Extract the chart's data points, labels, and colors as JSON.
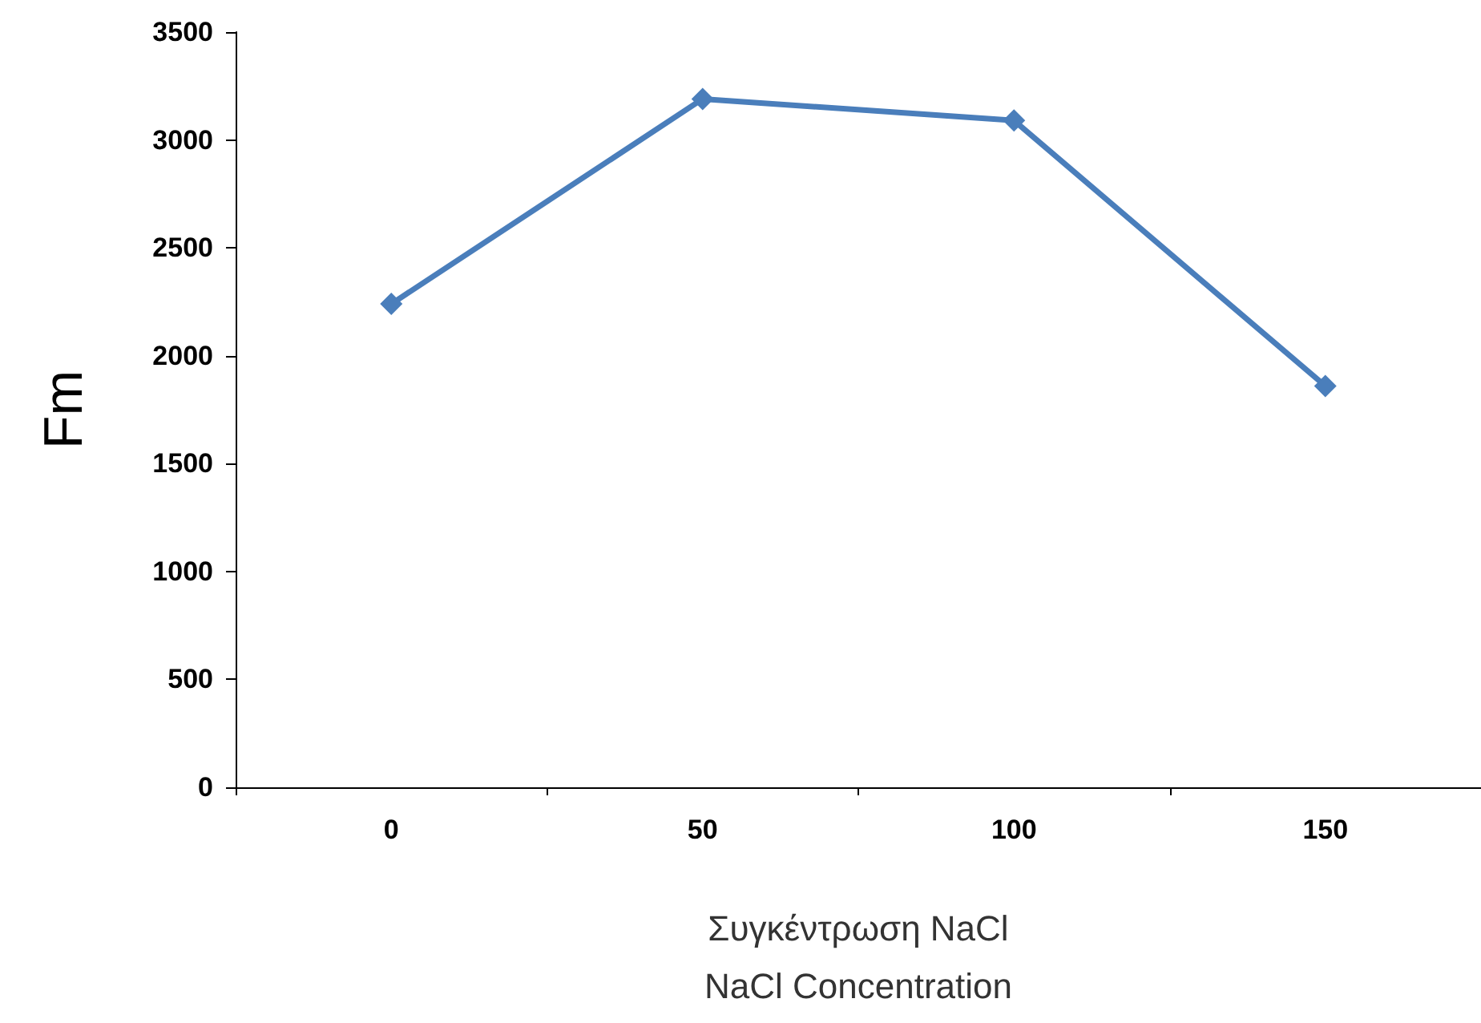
{
  "chart_data": {
    "type": "line",
    "categories": [
      "0",
      "50",
      "100",
      "150"
    ],
    "series": [
      {
        "color": "#4a7ebb",
        "values": [
          2240,
          3190,
          3090,
          1860
        ]
      }
    ],
    "xlabel": "Συγκέντρωση NaCl\nNaCl Concentration",
    "ylabel": "Fm",
    "ylim": [
      0,
      3500
    ],
    "yticks": [
      0,
      500,
      1000,
      1500,
      2000,
      2500,
      3000,
      3500
    ],
    "marker": "diamond",
    "line_style": "solid"
  }
}
